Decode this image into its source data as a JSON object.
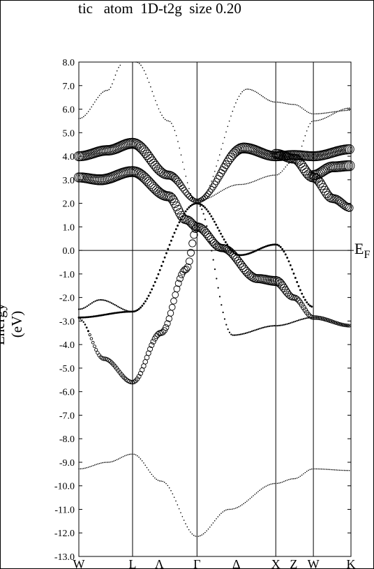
{
  "title": "tic   atom  1D-t2g  size 0.20",
  "ylabel": "Energy (eV)",
  "fermi_label": "E",
  "fermi_sub": "F",
  "chart_data": {
    "type": "scatter",
    "title": "tic   atom  1D-t2g  size 0.20",
    "ylabel": "Energy (eV)",
    "ylim": [
      -13.0,
      8.0
    ],
    "xlim": [
      0,
      7.6
    ],
    "grid": false,
    "fermi_level": 0.0,
    "kpoints": [
      {
        "label": "W",
        "x": 0.0
      },
      {
        "label": "L",
        "x": 1.5
      },
      {
        "label": "Λ",
        "x": 2.25
      },
      {
        "label": "Γ",
        "x": 3.3
      },
      {
        "label": "Δ",
        "x": 4.4
      },
      {
        "label": "X",
        "x": 5.5
      },
      {
        "label": "Z",
        "x": 6.0
      },
      {
        "label": "W",
        "x": 6.55
      },
      {
        "label": "K",
        "x": 7.6
      }
    ],
    "verticals": [
      1.5,
      3.3,
      5.5,
      6.55
    ],
    "yticks": [
      "8.0",
      "7.0",
      "6.0",
      "5.0",
      "4.0",
      "3.0",
      "2.0",
      "1.0",
      "0.0",
      "-1.0",
      "-2.0",
      "-3.0",
      "-4.0",
      "-5.0",
      "-6.0",
      "-7.0",
      "-8.0",
      "-9.0",
      "-10.0",
      "-11.0",
      "-12.0",
      "-13.0"
    ],
    "series": [
      {
        "points": [
          [
            0,
            -9.28
          ],
          [
            0.8,
            -9.0
          ],
          [
            1.5,
            -8.65
          ],
          [
            2.3,
            -9.8
          ],
          [
            3.3,
            -12.15
          ],
          [
            4.2,
            -11.0
          ],
          [
            5.5,
            -9.9
          ],
          [
            6.0,
            -9.7
          ],
          [
            6.55,
            -9.28
          ],
          [
            7.6,
            -9.35
          ]
        ],
        "weight": 0
      },
      {
        "points": [
          [
            0,
            -2.9
          ],
          [
            0.7,
            -4.6
          ],
          [
            1.5,
            -5.6
          ],
          [
            2.3,
            -3.5
          ],
          [
            3.0,
            -0.8
          ],
          [
            3.3,
            1.0
          ]
        ],
        "weight": [
          0,
          0.3,
          0.3,
          0.5,
          0.6,
          0.7
        ]
      },
      {
        "points": [
          [
            0,
            -2.85
          ],
          [
            1.5,
            -2.6
          ],
          [
            3.3,
            2.0
          ],
          [
            4.5,
            -0.2
          ],
          [
            5.5,
            0.25
          ],
          [
            6.55,
            -2.4
          ]
        ],
        "weight": 0.1
      },
      {
        "points": [
          [
            0,
            -2.5
          ],
          [
            0.6,
            -2.1
          ],
          [
            1.5,
            -2.6
          ],
          [
            3.3,
            2.0
          ],
          [
            4.3,
            -3.6
          ],
          [
            5.5,
            -3.2
          ],
          [
            6.55,
            -2.85
          ],
          [
            7.6,
            -3.2
          ]
        ],
        "weight": 0.05
      },
      {
        "points": [
          [
            0,
            3.1
          ],
          [
            0.6,
            3.0
          ],
          [
            1.5,
            3.35
          ],
          [
            2.5,
            2.3
          ],
          [
            3.0,
            1.3
          ],
          [
            3.3,
            1.0
          ],
          [
            4.0,
            0.1
          ],
          [
            5.0,
            -1.2
          ],
          [
            5.5,
            -1.3
          ],
          [
            6.0,
            -2.0
          ],
          [
            6.55,
            -2.85
          ],
          [
            7.6,
            -3.2
          ]
        ],
        "weight": [
          0.9,
          1,
          1,
          0.9,
          0.8,
          0.8,
          0.7,
          0.8,
          0.9,
          0.5,
          0.3,
          0.2
        ]
      },
      {
        "points": [
          [
            0,
            4.0
          ],
          [
            0.8,
            4.25
          ],
          [
            1.5,
            4.55
          ],
          [
            2.5,
            3.2
          ],
          [
            3.3,
            2.1
          ],
          [
            4.6,
            4.35
          ],
          [
            5.5,
            4.0
          ],
          [
            6.0,
            4.05
          ],
          [
            6.55,
            4.0
          ],
          [
            7.6,
            4.3
          ]
        ],
        "weight": [
          0.9,
          0.95,
          1,
          0.8,
          0.3,
          1,
          0.9,
          0.9,
          0.9,
          0.9
        ]
      },
      {
        "points": [
          [
            5.5,
            4.1
          ],
          [
            6.0,
            3.9
          ],
          [
            6.55,
            3.1
          ],
          [
            7.1,
            2.2
          ],
          [
            7.6,
            1.8
          ]
        ],
        "weight": [
          0.9,
          0.9,
          0.9,
          0.8,
          0.7
        ]
      },
      {
        "points": [
          [
            6.55,
            3.2
          ],
          [
            7.1,
            3.55
          ],
          [
            7.6,
            3.6
          ]
        ],
        "weight": [
          0.9,
          1,
          1
        ]
      },
      {
        "points": [
          [
            0,
            5.6
          ],
          [
            0.8,
            6.8
          ],
          [
            1.2,
            7.9
          ]
        ],
        "weight": 0
      },
      {
        "points": [
          [
            1.6,
            8.0
          ],
          [
            2.5,
            5.5
          ],
          [
            3.3,
            2.0
          ]
        ],
        "weight": 0
      },
      {
        "points": [
          [
            3.3,
            2.0
          ],
          [
            4.7,
            6.85
          ],
          [
            5.5,
            6.3
          ],
          [
            6.0,
            6.2
          ],
          [
            6.55,
            5.8
          ],
          [
            7.6,
            5.95
          ]
        ],
        "weight": 0
      },
      {
        "points": [
          [
            3.3,
            2.1
          ],
          [
            4.5,
            2.8
          ],
          [
            5.5,
            3.2
          ],
          [
            6.0,
            3.8
          ],
          [
            6.55,
            5.5
          ],
          [
            7.6,
            6.05
          ]
        ],
        "weight": 0
      }
    ]
  }
}
